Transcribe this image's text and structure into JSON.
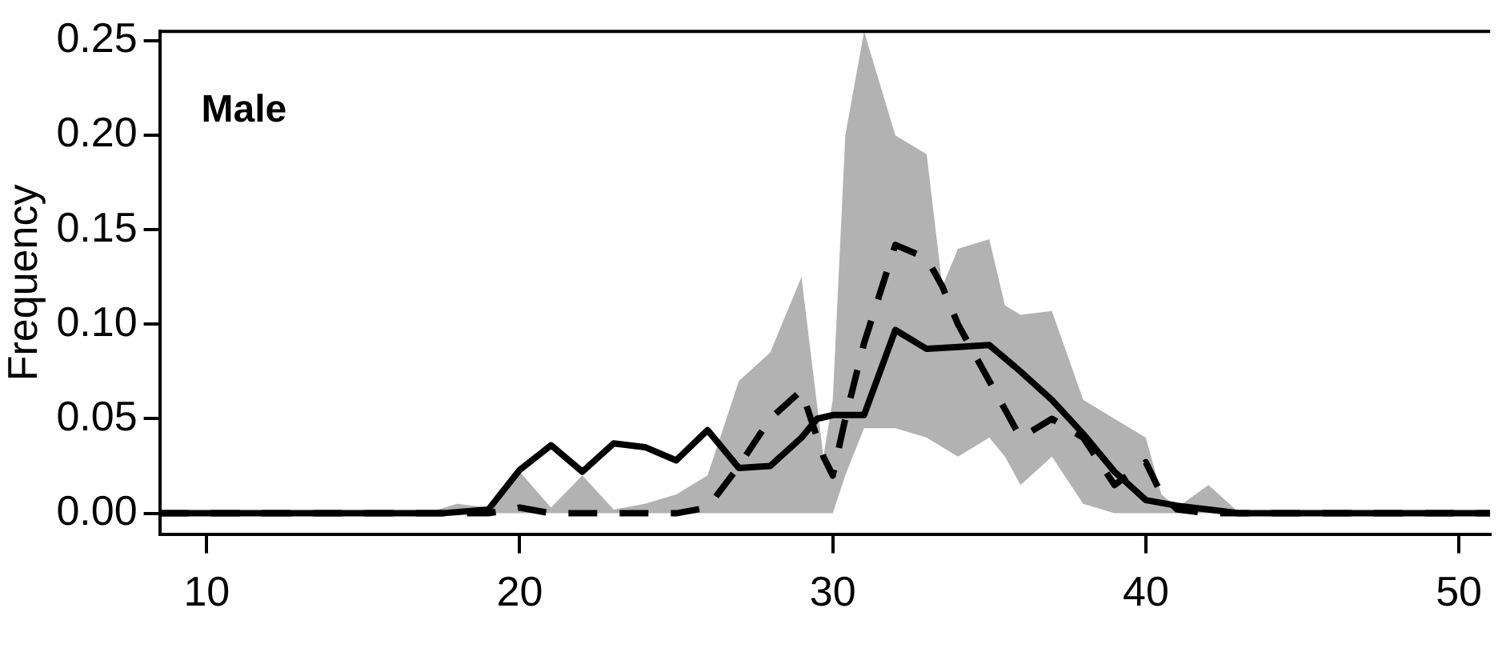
{
  "chart_data": {
    "type": "line",
    "ylabel": "Frequency",
    "annotations": [
      "Male"
    ],
    "xlim": [
      8.5,
      51
    ],
    "xticks": [
      10,
      20,
      30,
      40,
      50
    ],
    "ylim": [
      -0.011,
      0.255
    ],
    "yticks": [
      {
        "value": 0,
        "label": "0.00"
      },
      {
        "value": 0.05,
        "label": "0.05"
      },
      {
        "value": 0.1,
        "label": "0.10"
      },
      {
        "value": 0.15,
        "label": "0.15"
      },
      {
        "value": 0.2,
        "label": "0.20"
      },
      {
        "value": 0.25,
        "label": "0.25"
      }
    ],
    "grid": false,
    "marker": "none",
    "series": [
      {
        "color": "#000000",
        "line_style": "dashed",
        "x": [
          8.5,
          17,
          18,
          19,
          20,
          21,
          22,
          23,
          24,
          25,
          26,
          27,
          28,
          29,
          29.7,
          30,
          30.4,
          31,
          32,
          33,
          33.5,
          34,
          35,
          35.5,
          36,
          37,
          38,
          39,
          40,
          40.5,
          41,
          42,
          43,
          51
        ],
        "values": [
          0,
          0,
          0,
          0,
          0.003,
          0,
          0,
          0,
          0,
          0,
          0.003,
          0.025,
          0.05,
          0.065,
          0.03,
          0.02,
          0.05,
          0.09,
          0.142,
          0.135,
          0.12,
          0.1,
          0.07,
          0.055,
          0.04,
          0.05,
          0.04,
          0.015,
          0.027,
          0.01,
          0.002,
          0,
          0,
          0
        ],
        "lower": [
          0,
          0,
          0,
          0,
          0,
          0,
          0,
          0,
          0,
          0,
          0,
          0,
          0,
          0,
          0,
          0,
          0.02,
          0.045,
          0.045,
          0.04,
          0.035,
          0.03,
          0.04,
          0.03,
          0.015,
          0.03,
          0.005,
          0,
          0,
          0,
          0,
          0,
          0,
          0
        ],
        "upper": [
          0,
          0,
          0.005,
          0.003,
          0.022,
          0.003,
          0.02,
          0.002,
          0.005,
          0.01,
          0.02,
          0.07,
          0.085,
          0.125,
          0.03,
          0.06,
          0.2,
          0.255,
          0.2,
          0.19,
          0.12,
          0.14,
          0.145,
          0.11,
          0.105,
          0.107,
          0.06,
          0.05,
          0.04,
          0.01,
          0.003,
          0.015,
          0,
          0
        ]
      },
      {
        "color": "#000000",
        "line_style": "solid",
        "x": [
          8.5,
          17.5,
          19,
          20,
          21,
          22,
          23,
          24,
          25,
          26,
          27,
          28,
          29,
          29.5,
          30,
          31,
          32,
          33,
          34,
          35,
          36,
          37,
          38,
          39,
          40,
          41,
          43,
          51
        ],
        "values": [
          0,
          0,
          0.002,
          0.023,
          0.036,
          0.022,
          0.037,
          0.035,
          0.028,
          0.044,
          0.024,
          0.025,
          0.04,
          0.05,
          0.052,
          0.052,
          0.097,
          0.087,
          0.088,
          0.089,
          0.075,
          0.06,
          0.042,
          0.022,
          0.007,
          0.004,
          0,
          0
        ]
      }
    ]
  }
}
